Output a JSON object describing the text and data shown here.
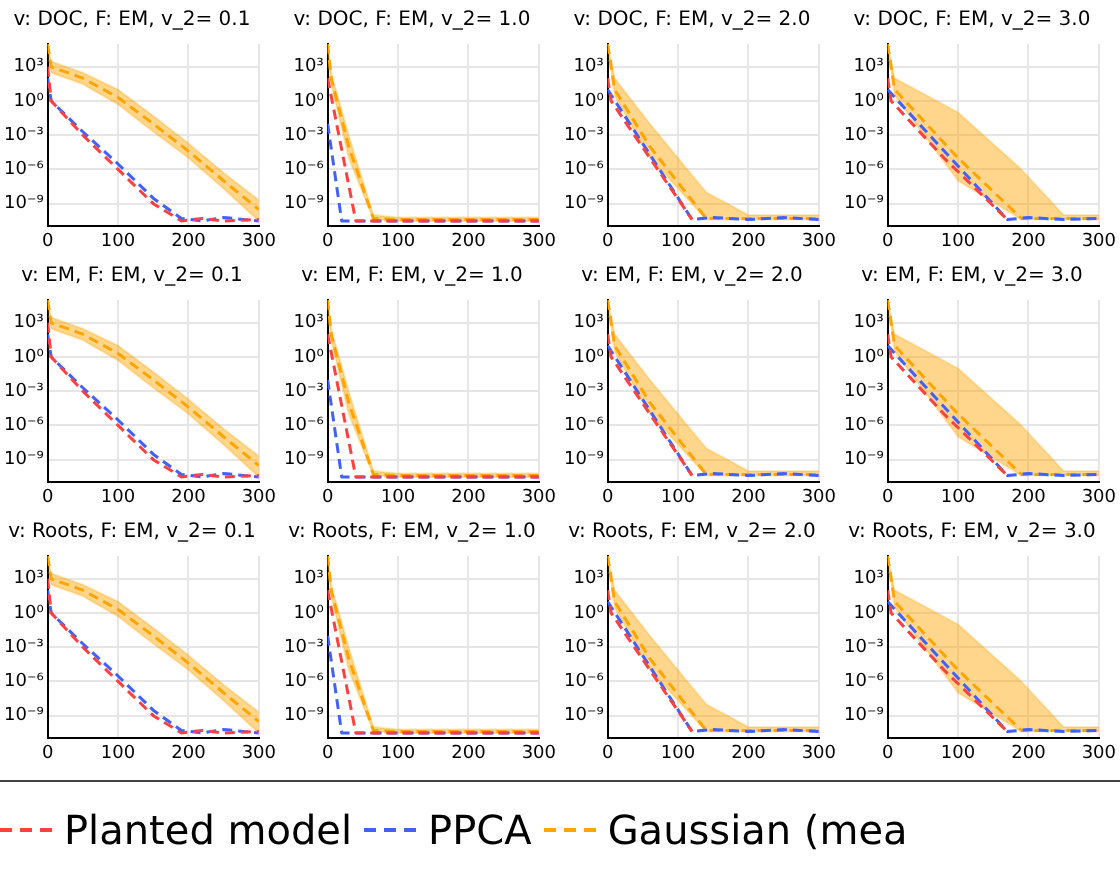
{
  "chart_data": [
    {
      "type": "line",
      "title": "v: DOC, F: EM, v_2= 0.1",
      "log": "y",
      "grid": true,
      "line_style": "dashed",
      "legend": "bottom",
      "xlim": [
        0,
        300
      ],
      "xticks": [
        0,
        100,
        200,
        300
      ],
      "ylim": [
        1e-11,
        100000.0
      ],
      "yticks": [
        {
          "value": 1000,
          "label": "10³"
        },
        {
          "value": 1,
          "label": "10⁰"
        },
        {
          "value": 0.001,
          "label": "10⁻³"
        },
        {
          "value": 1e-06,
          "label": "10⁻⁶"
        },
        {
          "value": 1e-09,
          "label": "10⁻⁹"
        }
      ],
      "series": [
        {
          "name": "Planted model",
          "color": "#ff4040",
          "x": [
            0,
            5,
            50,
            100,
            150,
            190,
            220,
            250,
            300
          ],
          "values": [
            1000,
            1,
            0.001,
            1e-06,
            1e-09,
            3e-11,
            5e-11,
            3e-11,
            4e-11
          ]
        },
        {
          "name": "PPCA",
          "color": "#4060ff",
          "x": [
            0,
            5,
            50,
            100,
            150,
            190,
            220,
            250,
            300
          ],
          "values": [
            100,
            1,
            0.002,
            3e-06,
            3e-09,
            5e-11,
            3e-11,
            6e-11,
            3e-11
          ]
        },
        {
          "name": "Gaussian (mea",
          "color": "#ffa500",
          "x": [
            0,
            5,
            50,
            100,
            150,
            200,
            250,
            300
          ],
          "values": [
            100000.0,
            1000,
            100,
            2,
            0.01,
            4e-05,
            1e-07,
            3e-10
          ],
          "lower": [
            100000.0,
            300,
            30,
            0.5,
            0.002,
            1e-05,
            2e-08,
            3e-11
          ],
          "upper": [
            100000.0,
            3000,
            300,
            10,
            0.05,
            0.0002,
            5e-07,
            2e-09
          ]
        }
      ]
    },
    {
      "type": "line",
      "title": "v: DOC, F: EM, v_2= 1.0",
      "log": "y",
      "grid": true,
      "line_style": "dashed",
      "xlim": [
        0,
        300
      ],
      "xticks": [
        0,
        100,
        200,
        300
      ],
      "ylim": [
        1e-11,
        100000.0
      ],
      "yticks": [
        {
          "value": 1000,
          "label": "10³"
        },
        {
          "value": 1,
          "label": "10⁰"
        },
        {
          "value": 0.001,
          "label": "10⁻³"
        },
        {
          "value": 1e-06,
          "label": "10⁻⁶"
        },
        {
          "value": 1e-09,
          "label": "10⁻⁹"
        }
      ],
      "series": [
        {
          "color": "#ff4040",
          "x": [
            0,
            40,
            100,
            200,
            300
          ],
          "values": [
            100,
            3e-11,
            3e-11,
            3e-11,
            3e-11
          ]
        },
        {
          "color": "#4060ff",
          "x": [
            0,
            20,
            100,
            200,
            300
          ],
          "values": [
            0.01,
            3e-11,
            3e-11,
            3e-11,
            3e-11
          ]
        },
        {
          "color": "#ffa500",
          "x": [
            0,
            5,
            30,
            65,
            100,
            200,
            300
          ],
          "values": [
            100000.0,
            100,
            0.0001,
            5e-11,
            4e-11,
            4e-11,
            4e-11
          ],
          "lower": [
            100000.0,
            30,
            1e-05,
            4e-11,
            3e-11,
            3e-11,
            3e-11
          ],
          "upper": [
            100000.0,
            300,
            0.001,
            1e-10,
            6e-11,
            6e-11,
            6e-11
          ]
        }
      ]
    },
    {
      "type": "line",
      "title": "v: DOC, F: EM, v_2= 2.0",
      "log": "y",
      "grid": true,
      "line_style": "dashed",
      "xlim": [
        0,
        300
      ],
      "xticks": [
        0,
        100,
        200,
        300
      ],
      "ylim": [
        1e-11,
        100000.0
      ],
      "yticks": [
        {
          "value": 1000,
          "label": "10³"
        },
        {
          "value": 1,
          "label": "10⁰"
        },
        {
          "value": 0.001,
          "label": "10⁻³"
        },
        {
          "value": 1e-06,
          "label": "10⁻⁶"
        },
        {
          "value": 1e-09,
          "label": "10⁻⁹"
        }
      ],
      "series": [
        {
          "color": "#ff4040",
          "x": [
            0,
            5,
            60,
            120
          ],
          "values": [
            100,
            1,
            1e-05,
            4e-11
          ]
        },
        {
          "color": "#4060ff",
          "x": [
            0,
            120,
            150,
            200,
            250,
            300
          ],
          "values": [
            10,
            4e-11,
            6e-11,
            4e-11,
            6e-11,
            4e-11
          ]
        },
        {
          "color": "#ffa500",
          "x": [
            0,
            10,
            60,
            140,
            200,
            300
          ],
          "values": [
            100000.0,
            10,
            0.0001,
            5e-11,
            5e-11,
            5e-11
          ],
          "lower": [
            100000.0,
            3,
            1e-05,
            4e-11,
            4e-11,
            4e-11
          ],
          "upper": [
            100000.0,
            100,
            0.01,
            1e-08,
            1e-10,
            1e-10
          ]
        }
      ]
    },
    {
      "type": "line",
      "title": "v: DOC, F: EM, v_2= 3.0",
      "log": "y",
      "grid": true,
      "line_style": "dashed",
      "xlim": [
        0,
        300
      ],
      "xticks": [
        0,
        100,
        200,
        300
      ],
      "ylim": [
        1e-11,
        100000.0
      ],
      "yticks": [
        {
          "value": 1000,
          "label": "10³"
        },
        {
          "value": 1,
          "label": "10⁰"
        },
        {
          "value": 0.001,
          "label": "10⁻³"
        },
        {
          "value": 1e-06,
          "label": "10⁻⁶"
        },
        {
          "value": 1e-09,
          "label": "10⁻⁹"
        }
      ],
      "series": [
        {
          "color": "#ff4040",
          "x": [
            0,
            5,
            80,
            170
          ],
          "values": [
            100,
            1,
            1e-05,
            4e-11
          ]
        },
        {
          "color": "#4060ff",
          "x": [
            0,
            170,
            200,
            250,
            300
          ],
          "values": [
            10,
            4e-11,
            6e-11,
            4e-11,
            5e-11
          ]
        },
        {
          "color": "#ffa500",
          "x": [
            0,
            10,
            100,
            190,
            250,
            300
          ],
          "values": [
            100000.0,
            10,
            1e-05,
            5e-11,
            5e-11,
            5e-11
          ],
          "lower": [
            100000.0,
            3,
            1e-07,
            4e-11,
            4e-11,
            4e-11
          ],
          "upper": [
            100000.0,
            100,
            0.1,
            1e-06,
            1e-10,
            1e-10
          ]
        }
      ]
    },
    {
      "type": "line",
      "title": "v: EM, F: EM, v_2= 0.1",
      "log": "y",
      "grid": true,
      "line_style": "dashed",
      "xlim": [
        0,
        300
      ],
      "xticks": [
        0,
        100,
        200,
        300
      ],
      "ylim": [
        1e-11,
        100000.0
      ],
      "yticks": [
        {
          "value": 1000,
          "label": "10³"
        },
        {
          "value": 1,
          "label": "10⁰"
        },
        {
          "value": 0.001,
          "label": "10⁻³"
        },
        {
          "value": 1e-06,
          "label": "10⁻⁶"
        },
        {
          "value": 1e-09,
          "label": "10⁻⁹"
        }
      ],
      "series": [
        {
          "color": "#ff4040",
          "x": [
            0,
            5,
            50,
            100,
            150,
            190,
            220,
            250,
            300
          ],
          "values": [
            1000,
            1,
            0.001,
            1e-06,
            1e-09,
            3e-11,
            5e-11,
            3e-11,
            4e-11
          ]
        },
        {
          "color": "#4060ff",
          "x": [
            0,
            5,
            50,
            100,
            150,
            190,
            220,
            250,
            300
          ],
          "values": [
            100,
            1,
            0.002,
            3e-06,
            3e-09,
            5e-11,
            3e-11,
            6e-11,
            3e-11
          ]
        },
        {
          "color": "#ffa500",
          "x": [
            0,
            5,
            50,
            100,
            150,
            200,
            250,
            300
          ],
          "values": [
            100000.0,
            1000,
            100,
            2,
            0.01,
            4e-05,
            1e-07,
            3e-10
          ],
          "lower": [
            100000.0,
            300,
            30,
            0.5,
            0.002,
            1e-05,
            2e-08,
            3e-11
          ],
          "upper": [
            100000.0,
            3000,
            300,
            10,
            0.05,
            0.0002,
            5e-07,
            2e-09
          ]
        }
      ]
    },
    {
      "type": "line",
      "title": "v: EM, F: EM, v_2= 1.0",
      "log": "y",
      "grid": true,
      "line_style": "dashed",
      "xlim": [
        0,
        300
      ],
      "xticks": [
        0,
        100,
        200,
        300
      ],
      "ylim": [
        1e-11,
        100000.0
      ],
      "yticks": [
        {
          "value": 1000,
          "label": "10³"
        },
        {
          "value": 1,
          "label": "10⁰"
        },
        {
          "value": 0.001,
          "label": "10⁻³"
        },
        {
          "value": 1e-06,
          "label": "10⁻⁶"
        },
        {
          "value": 1e-09,
          "label": "10⁻⁹"
        }
      ],
      "series": [
        {
          "color": "#ff4040",
          "x": [
            0,
            40,
            100,
            200,
            300
          ],
          "values": [
            100,
            3e-11,
            3e-11,
            3e-11,
            3e-11
          ]
        },
        {
          "color": "#4060ff",
          "x": [
            0,
            20,
            100,
            200,
            300
          ],
          "values": [
            0.01,
            3e-11,
            3e-11,
            3e-11,
            3e-11
          ]
        },
        {
          "color": "#ffa500",
          "x": [
            0,
            5,
            30,
            65,
            100,
            200,
            300
          ],
          "values": [
            100000.0,
            100,
            0.0001,
            5e-11,
            4e-11,
            4e-11,
            4e-11
          ],
          "lower": [
            100000.0,
            30,
            1e-05,
            4e-11,
            3e-11,
            3e-11,
            3e-11
          ],
          "upper": [
            100000.0,
            300,
            0.001,
            1e-10,
            6e-11,
            6e-11,
            6e-11
          ]
        }
      ]
    },
    {
      "type": "line",
      "title": "v: EM, F: EM, v_2= 2.0",
      "log": "y",
      "grid": true,
      "line_style": "dashed",
      "xlim": [
        0,
        300
      ],
      "xticks": [
        0,
        100,
        200,
        300
      ],
      "ylim": [
        1e-11,
        100000.0
      ],
      "yticks": [
        {
          "value": 1000,
          "label": "10³"
        },
        {
          "value": 1,
          "label": "10⁰"
        },
        {
          "value": 0.001,
          "label": "10⁻³"
        },
        {
          "value": 1e-06,
          "label": "10⁻⁶"
        },
        {
          "value": 1e-09,
          "label": "10⁻⁹"
        }
      ],
      "series": [
        {
          "color": "#ff4040",
          "x": [
            0,
            5,
            60,
            120
          ],
          "values": [
            100,
            1,
            1e-05,
            4e-11
          ]
        },
        {
          "color": "#4060ff",
          "x": [
            0,
            120,
            150,
            200,
            250,
            300
          ],
          "values": [
            10,
            4e-11,
            6e-11,
            4e-11,
            6e-11,
            4e-11
          ]
        },
        {
          "color": "#ffa500",
          "x": [
            0,
            10,
            60,
            140,
            200,
            300
          ],
          "values": [
            100000.0,
            10,
            0.0001,
            5e-11,
            5e-11,
            5e-11
          ],
          "lower": [
            100000.0,
            3,
            1e-05,
            4e-11,
            4e-11,
            4e-11
          ],
          "upper": [
            100000.0,
            100,
            0.01,
            1e-08,
            1e-10,
            1e-10
          ]
        }
      ]
    },
    {
      "type": "line",
      "title": "v: EM, F: EM, v_2= 3.0",
      "log": "y",
      "grid": true,
      "line_style": "dashed",
      "xlim": [
        0,
        300
      ],
      "xticks": [
        0,
        100,
        200,
        300
      ],
      "ylim": [
        1e-11,
        100000.0
      ],
      "yticks": [
        {
          "value": 1000,
          "label": "10³"
        },
        {
          "value": 1,
          "label": "10⁰"
        },
        {
          "value": 0.001,
          "label": "10⁻³"
        },
        {
          "value": 1e-06,
          "label": "10⁻⁶"
        },
        {
          "value": 1e-09,
          "label": "10⁻⁹"
        }
      ],
      "series": [
        {
          "color": "#ff4040",
          "x": [
            0,
            5,
            80,
            170
          ],
          "values": [
            100,
            1,
            1e-05,
            4e-11
          ]
        },
        {
          "color": "#4060ff",
          "x": [
            0,
            170,
            200,
            250,
            300
          ],
          "values": [
            10,
            4e-11,
            6e-11,
            4e-11,
            5e-11
          ]
        },
        {
          "color": "#ffa500",
          "x": [
            0,
            10,
            100,
            190,
            250,
            300
          ],
          "values": [
            100000.0,
            10,
            1e-05,
            5e-11,
            5e-11,
            5e-11
          ],
          "lower": [
            100000.0,
            3,
            1e-07,
            4e-11,
            4e-11,
            4e-11
          ],
          "upper": [
            100000.0,
            100,
            0.1,
            1e-06,
            1e-10,
            1e-10
          ]
        }
      ]
    },
    {
      "type": "line",
      "title": "v: Roots, F: EM, v_2= 0.1",
      "log": "y",
      "grid": true,
      "line_style": "dashed",
      "xlim": [
        0,
        300
      ],
      "xticks": [
        0,
        100,
        200,
        300
      ],
      "ylim": [
        1e-11,
        100000.0
      ],
      "yticks": [
        {
          "value": 1000,
          "label": "10³"
        },
        {
          "value": 1,
          "label": "10⁰"
        },
        {
          "value": 0.001,
          "label": "10⁻³"
        },
        {
          "value": 1e-06,
          "label": "10⁻⁶"
        },
        {
          "value": 1e-09,
          "label": "10⁻⁹"
        }
      ],
      "series": [
        {
          "color": "#ff4040",
          "x": [
            0,
            5,
            50,
            100,
            150,
            190,
            220,
            250,
            300
          ],
          "values": [
            1000,
            1,
            0.001,
            1e-06,
            1e-09,
            3e-11,
            5e-11,
            3e-11,
            4e-11
          ]
        },
        {
          "color": "#4060ff",
          "x": [
            0,
            5,
            50,
            100,
            150,
            190,
            220,
            250,
            300
          ],
          "values": [
            100,
            1,
            0.002,
            3e-06,
            3e-09,
            5e-11,
            3e-11,
            6e-11,
            3e-11
          ]
        },
        {
          "color": "#ffa500",
          "x": [
            0,
            5,
            50,
            100,
            150,
            200,
            250,
            300
          ],
          "values": [
            100000.0,
            1000,
            100,
            2,
            0.01,
            4e-05,
            1e-07,
            3e-10
          ],
          "lower": [
            100000.0,
            300,
            30,
            0.5,
            0.002,
            1e-05,
            2e-08,
            3e-11
          ],
          "upper": [
            100000.0,
            3000,
            300,
            10,
            0.05,
            0.0002,
            5e-07,
            2e-09
          ]
        }
      ]
    },
    {
      "type": "line",
      "title": "v: Roots, F: EM, v_2= 1.0",
      "log": "y",
      "grid": true,
      "line_style": "dashed",
      "xlim": [
        0,
        300
      ],
      "xticks": [
        0,
        100,
        200,
        300
      ],
      "ylim": [
        1e-11,
        100000.0
      ],
      "yticks": [
        {
          "value": 1000,
          "label": "10³"
        },
        {
          "value": 1,
          "label": "10⁰"
        },
        {
          "value": 0.001,
          "label": "10⁻³"
        },
        {
          "value": 1e-06,
          "label": "10⁻⁶"
        },
        {
          "value": 1e-09,
          "label": "10⁻⁹"
        }
      ],
      "series": [
        {
          "color": "#ff4040",
          "x": [
            0,
            40,
            100,
            200,
            300
          ],
          "values": [
            100,
            3e-11,
            3e-11,
            3e-11,
            3e-11
          ]
        },
        {
          "color": "#4060ff",
          "x": [
            0,
            20,
            100,
            200,
            300
          ],
          "values": [
            0.01,
            3e-11,
            3e-11,
            3e-11,
            3e-11
          ]
        },
        {
          "color": "#ffa500",
          "x": [
            0,
            5,
            30,
            65,
            100,
            200,
            300
          ],
          "values": [
            100000.0,
            100,
            0.0001,
            5e-11,
            4e-11,
            4e-11,
            4e-11
          ],
          "lower": [
            100000.0,
            30,
            1e-05,
            4e-11,
            3e-11,
            3e-11,
            3e-11
          ],
          "upper": [
            100000.0,
            300,
            0.001,
            1e-10,
            6e-11,
            6e-11,
            6e-11
          ]
        }
      ]
    },
    {
      "type": "line",
      "title": "v: Roots, F: EM, v_2= 2.0",
      "log": "y",
      "grid": true,
      "line_style": "dashed",
      "xlim": [
        0,
        300
      ],
      "xticks": [
        0,
        100,
        200,
        300
      ],
      "ylim": [
        1e-11,
        100000.0
      ],
      "yticks": [
        {
          "value": 1000,
          "label": "10³"
        },
        {
          "value": 1,
          "label": "10⁰"
        },
        {
          "value": 0.001,
          "label": "10⁻³"
        },
        {
          "value": 1e-06,
          "label": "10⁻⁶"
        },
        {
          "value": 1e-09,
          "label": "10⁻⁹"
        }
      ],
      "series": [
        {
          "color": "#ff4040",
          "x": [
            0,
            5,
            60,
            120
          ],
          "values": [
            100,
            1,
            1e-05,
            4e-11
          ]
        },
        {
          "color": "#4060ff",
          "x": [
            0,
            120,
            150,
            200,
            250,
            300
          ],
          "values": [
            10,
            4e-11,
            6e-11,
            4e-11,
            6e-11,
            4e-11
          ]
        },
        {
          "color": "#ffa500",
          "x": [
            0,
            10,
            60,
            140,
            200,
            300
          ],
          "values": [
            100000.0,
            10,
            0.0001,
            5e-11,
            5e-11,
            5e-11
          ],
          "lower": [
            100000.0,
            3,
            1e-05,
            4e-11,
            4e-11,
            4e-11
          ],
          "upper": [
            100000.0,
            100,
            0.01,
            1e-08,
            1e-10,
            1e-10
          ]
        }
      ]
    },
    {
      "type": "line",
      "title": "v: Roots, F: EM, v_2= 3.0",
      "log": "y",
      "grid": true,
      "line_style": "dashed",
      "xlim": [
        0,
        300
      ],
      "xticks": [
        0,
        100,
        200,
        300
      ],
      "ylim": [
        1e-11,
        100000.0
      ],
      "yticks": [
        {
          "value": 1000,
          "label": "10³"
        },
        {
          "value": 1,
          "label": "10⁰"
        },
        {
          "value": 0.001,
          "label": "10⁻³"
        },
        {
          "value": 1e-06,
          "label": "10⁻⁶"
        },
        {
          "value": 1e-09,
          "label": "10⁻⁹"
        }
      ],
      "series": [
        {
          "color": "#ff4040",
          "x": [
            0,
            5,
            80,
            170
          ],
          "values": [
            100,
            1,
            1e-05,
            4e-11
          ]
        },
        {
          "color": "#4060ff",
          "x": [
            0,
            170,
            200,
            250,
            300
          ],
          "values": [
            10,
            4e-11,
            6e-11,
            4e-11,
            5e-11
          ]
        },
        {
          "color": "#ffa500",
          "x": [
            0,
            10,
            100,
            190,
            250,
            300
          ],
          "values": [
            100000.0,
            10,
            1e-05,
            5e-11,
            5e-11,
            5e-11
          ],
          "lower": [
            100000.0,
            3,
            1e-07,
            4e-11,
            4e-11,
            4e-11
          ],
          "upper": [
            100000.0,
            100,
            0.1,
            1e-06,
            1e-10,
            1e-10
          ]
        }
      ]
    }
  ]
}
